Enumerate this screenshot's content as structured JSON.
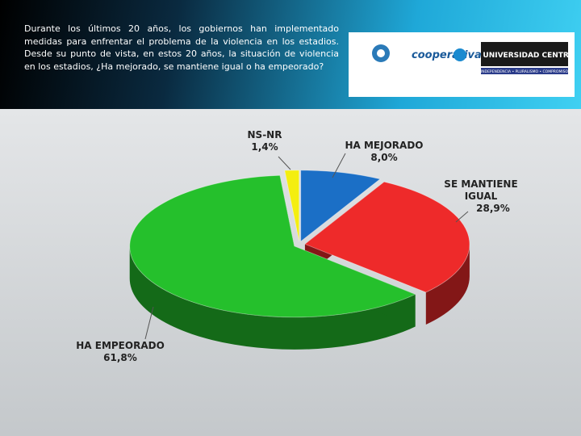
{
  "header": {
    "question": "Durante los últimos 20 años, los gobiernos han implementado medidas para enfrentar el problema de la violencia en los estadios. Desde su punto de vista, en estos 20 años, la situación de violencia en los estadios, ¿Ha mejorado, se mantiene igual o ha empeorado?",
    "logos": {
      "radio": "cooperativa",
      "university": "UNIVERSIDAD CENTRAL",
      "motto": "INDEPENDENCIA • PLURALISMO • COMPROMISO"
    }
  },
  "chart_data": {
    "type": "pie",
    "categories": [
      "HA MEJORADO",
      "SE MANTIENE IGUAL",
      "HA EMPEORADO",
      "NS-NR"
    ],
    "values": [
      8.0,
      28.9,
      61.8,
      1.4
    ],
    "value_labels": [
      "8,0%",
      "28,9%",
      "61,8%",
      "1,4%"
    ],
    "colors": [
      "#1b6fc6",
      "#ee2a2a",
      "#25c02c",
      "#f4ee10"
    ]
  }
}
